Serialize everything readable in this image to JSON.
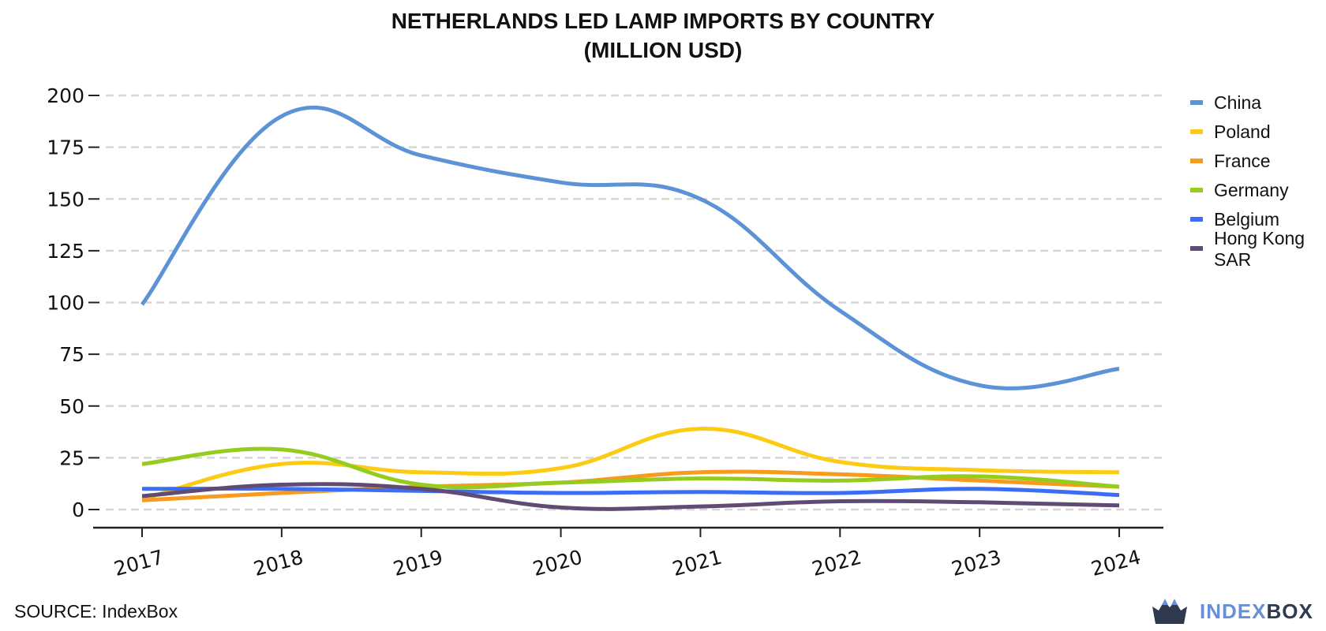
{
  "title_line1": "NETHERLANDS LED LAMP IMPORTS BY COUNTRY",
  "title_line2": "(MILLION USD)",
  "source": "SOURCE: IndexBox",
  "brand": {
    "part1": "INDEX",
    "part2": "BOX",
    "icon": "crown-box-logo-icon"
  },
  "chart_data": {
    "type": "line",
    "x": [
      2017,
      2018,
      2019,
      2020,
      2021,
      2022,
      2023,
      2024
    ],
    "x_tick_labels": [
      "2017",
      "2018",
      "2019",
      "2020",
      "2021",
      "2022",
      "2023",
      "2024"
    ],
    "y_ticks": [
      0,
      25,
      50,
      75,
      100,
      125,
      150,
      175,
      200
    ],
    "y_tick_labels": [
      "0",
      "25",
      "50",
      "75",
      "100",
      "125",
      "150",
      "175",
      "200"
    ],
    "ylim": [
      -9,
      200
    ],
    "grid": "horizontal dashed",
    "legend_position": "right",
    "series": [
      {
        "name": "China",
        "color": "#5b93d6",
        "values": [
          99,
          190,
          171,
          158,
          150,
          96,
          60,
          68
        ]
      },
      {
        "name": "Poland",
        "color": "#fdcb13",
        "values": [
          5,
          22,
          18,
          20,
          39,
          23,
          19,
          18
        ]
      },
      {
        "name": "France",
        "color": "#f79a1e",
        "values": [
          4.5,
          8,
          11,
          13,
          18,
          17,
          14,
          11
        ]
      },
      {
        "name": "Germany",
        "color": "#96cc1e",
        "values": [
          22,
          29,
          12,
          13,
          15,
          14,
          16,
          11
        ]
      },
      {
        "name": "Belgium",
        "color": "#3b6ef5",
        "values": [
          10,
          10,
          9,
          8,
          8.5,
          8,
          10,
          7
        ]
      },
      {
        "name": "Hong Kong SAR",
        "color": "#5f4b73",
        "values": [
          6.5,
          12,
          10,
          1,
          1.5,
          4,
          3.5,
          2
        ]
      }
    ]
  }
}
